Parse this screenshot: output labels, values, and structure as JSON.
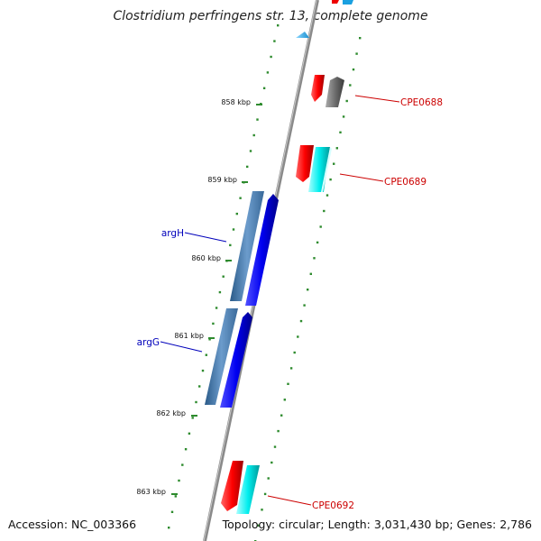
{
  "title": "Clostridium perfringens str. 13, complete genome",
  "footer": {
    "accession": "Accession: NC_003366",
    "summary": "Topology: circular; Length: 3,031,430 bp; Genes: 2,786"
  },
  "scale_labels": [
    "858 kbp",
    "859 kbp",
    "860 kbp",
    "861 kbp",
    "862 kbp",
    "863 kbp"
  ],
  "gene_labels": {
    "cpe0688": "CPE0688",
    "cpe0689": "CPE0689",
    "argh": "argH",
    "argg": "argG",
    "cpe0692": "CPE0692"
  },
  "colors": {
    "backbone": "#8a8a8a",
    "tick": "#2e8b2e",
    "gene_red": "#e00000",
    "gene_cyan": "#00e0e0",
    "gene_grey": "#6a6a6a",
    "gene_steel": "#4682b4",
    "gene_blue": "#0000ee",
    "gene_skyblue": "#1ea0e0",
    "label_red": "#cc0000",
    "label_blue": "#0000bb"
  }
}
